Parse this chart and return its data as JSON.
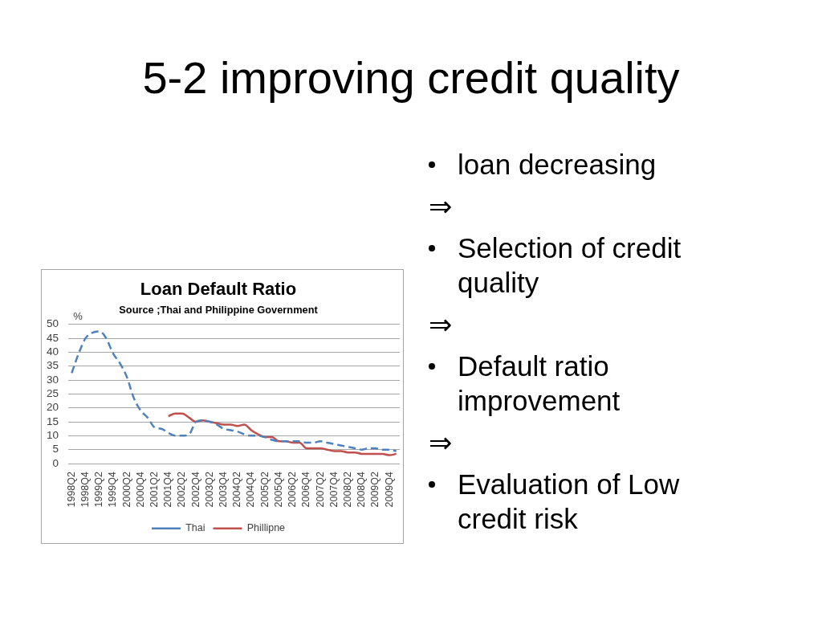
{
  "chart_data": {
    "type": "line",
    "title": "Loan Default Ratio",
    "subtitle": "Source ;Thai and Philippine Government",
    "ylabel": "%",
    "annotations": [
      "5-2 improving credit quality",
      "loan decreasing",
      "⇒",
      "Selection of credit quality",
      "⇒",
      "Default ratio improvement",
      "⇒",
      "Evaluation of Low credit risk"
    ],
    "categories": [
      "1998Q2",
      null,
      "1998Q4",
      null,
      "1999Q2",
      null,
      "1999Q4",
      null,
      "2000Q2",
      null,
      "2000Q4",
      null,
      "2001Q2",
      null,
      "2001Q4",
      null,
      "2002Q2",
      null,
      "2002Q4",
      null,
      "2003Q2",
      null,
      "2003Q4",
      null,
      "2004Q2",
      null,
      "2004Q4",
      null,
      "2005Q2",
      null,
      "2005Q4",
      null,
      "2006Q2",
      null,
      "2006Q4",
      null,
      "2007Q2",
      null,
      "2007Q4",
      null,
      "2008Q2",
      null,
      "2008Q4",
      null,
      "2009Q2",
      null,
      "2009Q4",
      null
    ],
    "series": [
      {
        "name": "Thai",
        "color": "#4f81bd",
        "line_style": "dashed",
        "values": [
          32.5,
          39.5,
          45,
          47,
          47.5,
          45,
          39.5,
          36,
          31,
          23.5,
          19,
          16.5,
          13,
          12.5,
          11,
          10,
          10,
          10.5,
          15,
          15.5,
          15,
          14,
          12.5,
          12,
          11.5,
          10.5,
          10,
          10,
          9.5,
          8.5,
          8,
          8,
          8,
          8,
          7.5,
          7.5,
          8,
          7.5,
          7,
          6.5,
          6,
          5.5,
          5,
          5.5,
          5.5,
          5,
          5,
          4.5
        ]
      },
      {
        "name": "Phillipne",
        "color": "#c0504d",
        "line_style": "solid",
        "values": [
          null,
          null,
          null,
          null,
          null,
          null,
          null,
          null,
          null,
          null,
          null,
          null,
          null,
          null,
          17,
          18,
          18,
          16.5,
          15,
          15.5,
          15,
          14.5,
          14,
          14,
          13.5,
          14,
          12,
          10.5,
          9.5,
          9.5,
          8,
          8,
          7.5,
          7.5,
          5.5,
          5.5,
          5.5,
          5,
          4.5,
          4.5,
          4,
          4,
          3.5,
          3.5,
          3.5,
          3.5,
          3,
          3.5
        ]
      }
    ],
    "ylim": [
      0,
      50
    ],
    "yticks": [
      0,
      5,
      10,
      15,
      20,
      25,
      30,
      35,
      40,
      45,
      50
    ],
    "grid": "y",
    "legend": "bottom",
    "marker": "none"
  }
}
